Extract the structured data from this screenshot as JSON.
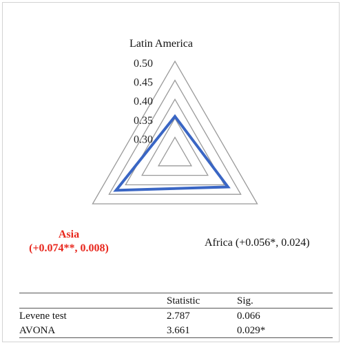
{
  "chart_data": {
    "type": "radar",
    "axes": [
      {
        "label": "Latin America",
        "value": 0.355
      },
      {
        "label": "Africa (+0.056*, 0.024)",
        "value": 0.411
      },
      {
        "label": "Asia",
        "sublabel": "(+0.074**, 0.008)",
        "value": 0.429
      }
    ],
    "radial_ticks": [
      "0.30",
      "0.35",
      "0.40",
      "0.45",
      "0.50"
    ],
    "range": [
      0.25,
      0.5
    ],
    "grid_color": "#999999",
    "series_color": "#3a66c4",
    "highlight_color": "#e8261c"
  },
  "table": {
    "headers": [
      "",
      "Statistic",
      "Sig."
    ],
    "rows": [
      [
        "Levene test",
        "2.787",
        "0.066"
      ],
      [
        "AVONA",
        "3.661",
        "0.029*"
      ]
    ]
  }
}
